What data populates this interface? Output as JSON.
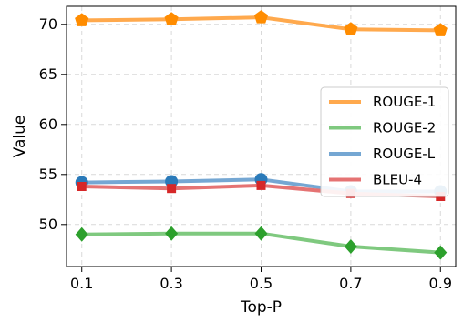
{
  "chart_data": {
    "type": "line",
    "x": [
      0.1,
      0.3,
      0.5,
      0.7,
      0.9
    ],
    "x_tick_labels": [
      "0.1",
      "0.3",
      "0.5",
      "0.7",
      "0.9"
    ],
    "y_ticks": [
      50,
      55,
      60,
      65,
      70
    ],
    "xlabel": "Top-P",
    "ylabel": "Value",
    "ylim": [
      45.8,
      71.8
    ],
    "grid": true,
    "legend_position": "center-right",
    "series": [
      {
        "name": "ROUGE-1",
        "color": "#ffa94d",
        "marker_color": "#ff8c00",
        "marker": "pentagon",
        "values": [
          70.4,
          70.5,
          70.7,
          69.5,
          69.4
        ]
      },
      {
        "name": "ROUGE-2",
        "color": "#7fc97f",
        "marker_color": "#2ca02c",
        "marker": "diamond",
        "values": [
          49.0,
          49.1,
          49.1,
          47.8,
          47.2
        ]
      },
      {
        "name": "ROUGE-L",
        "color": "#75a7d3",
        "marker_color": "#2a7ab9",
        "marker": "circle",
        "values": [
          54.2,
          54.3,
          54.5,
          53.3,
          53.3
        ]
      },
      {
        "name": "BLEU-4",
        "color": "#e57373",
        "marker_color": "#d62728",
        "marker": "square",
        "values": [
          53.8,
          53.6,
          53.9,
          53.1,
          52.8
        ]
      }
    ]
  }
}
